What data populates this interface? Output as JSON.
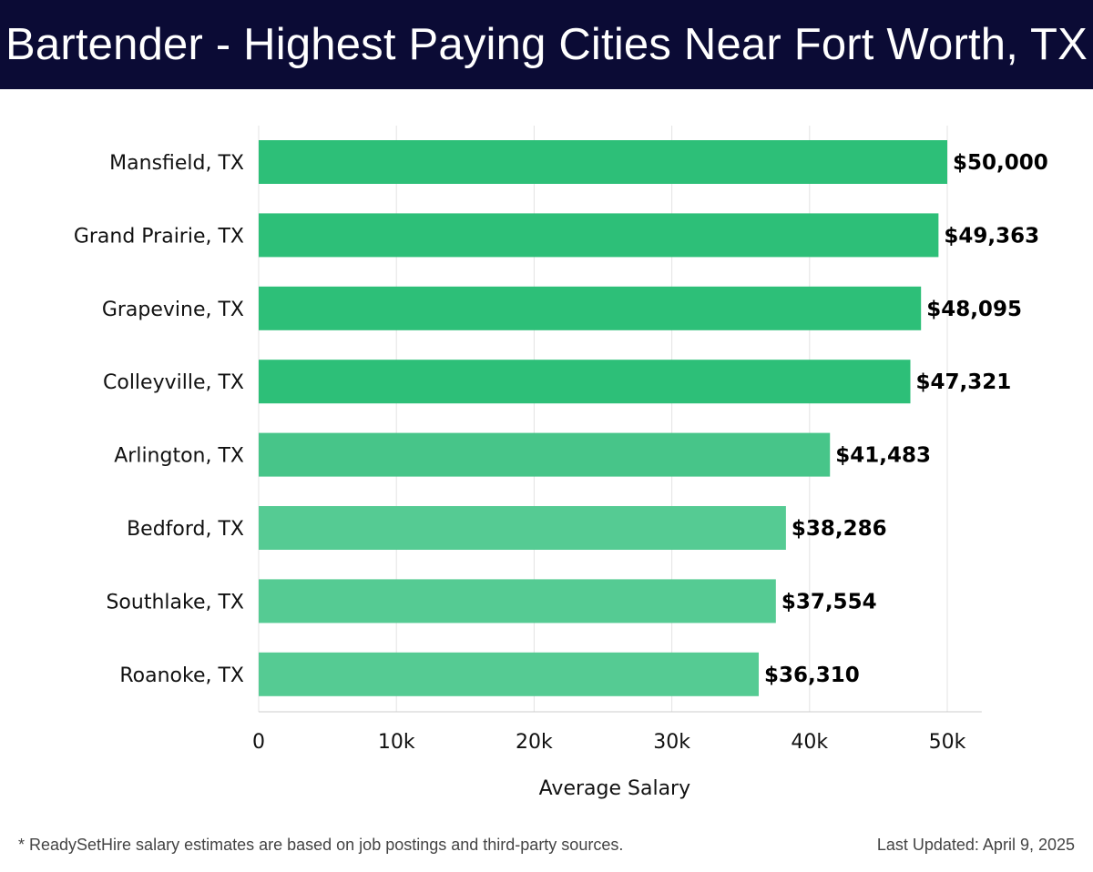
{
  "header": {
    "title": "Bartender - Highest Paying Cities Near Fort Worth, TX"
  },
  "footer": {
    "footnote": "* ReadySetHire salary estimates are based on job postings and third-party sources.",
    "updated": "Last Updated: April 9, 2025"
  },
  "colors": {
    "header_bg": "#0b0b35",
    "bar_dark": "#2dbf78",
    "bar_mid": "#47c589",
    "bar_light": "#55cb93"
  },
  "chart_data": {
    "type": "bar",
    "orientation": "horizontal",
    "title": "Bartender - Highest Paying Cities Near Fort Worth, TX",
    "xlabel": "Average Salary",
    "ylabel": "",
    "categories": [
      "Mansfield, TX",
      "Grand Prairie, TX",
      "Grapevine, TX",
      "Colleyville, TX",
      "Arlington, TX",
      "Bedford, TX",
      "Southlake, TX",
      "Roanoke, TX"
    ],
    "values": [
      50000,
      49363,
      48095,
      47321,
      41483,
      38286,
      37554,
      36310
    ],
    "value_labels": [
      "$50,000",
      "$49,363",
      "$48,095",
      "$47,321",
      "$41,483",
      "$38,286",
      "$37,554",
      "$36,310"
    ],
    "xlim": [
      0,
      52500
    ],
    "xticks": [
      0,
      10000,
      20000,
      30000,
      40000,
      50000
    ],
    "xtick_labels": [
      "0",
      "10k",
      "20k",
      "30k",
      "40k",
      "50k"
    ],
    "grid": true,
    "legend": "none"
  }
}
